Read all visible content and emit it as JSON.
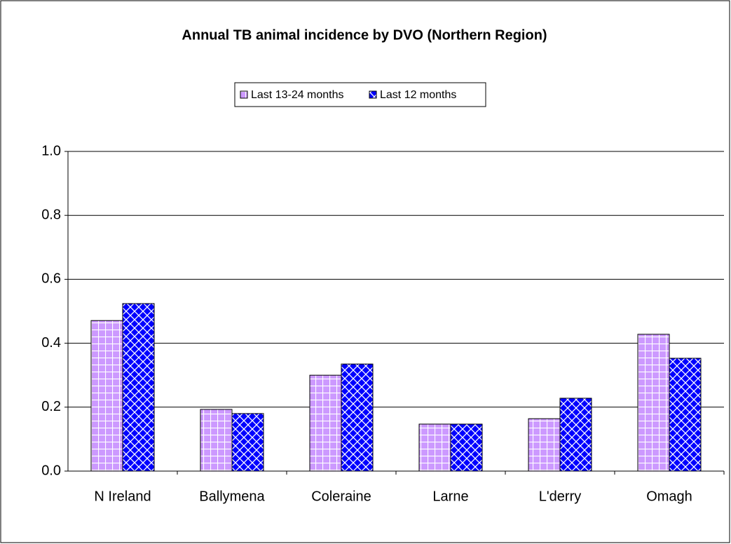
{
  "chart_data": {
    "type": "bar",
    "title": "Annual TB animal incidence by DVO (Northern Region)",
    "categories": [
      "N Ireland",
      "Ballymena",
      "Coleraine",
      "Larne",
      "L'derry",
      "Omagh"
    ],
    "series": [
      {
        "name": "Last 13-24 months",
        "color": "#cc99ff",
        "values": [
          0.471,
          0.193,
          0.3,
          0.147,
          0.164,
          0.428
        ]
      },
      {
        "name": "Last 12 months",
        "color": "#0000ff",
        "values": [
          0.524,
          0.18,
          0.335,
          0.147,
          0.228,
          0.353
        ]
      }
    ],
    "ylim": [
      0,
      1
    ],
    "yticks": [
      {
        "value": 0,
        "label": "0.0"
      },
      {
        "value": 0.2,
        "label": "0.2"
      },
      {
        "value": 0.4,
        "label": "0.4"
      },
      {
        "value": 0.6,
        "label": "0.6"
      },
      {
        "value": 0.8,
        "label": "0.8"
      },
      {
        "value": 1,
        "label": "1.0"
      }
    ],
    "grid": true
  }
}
